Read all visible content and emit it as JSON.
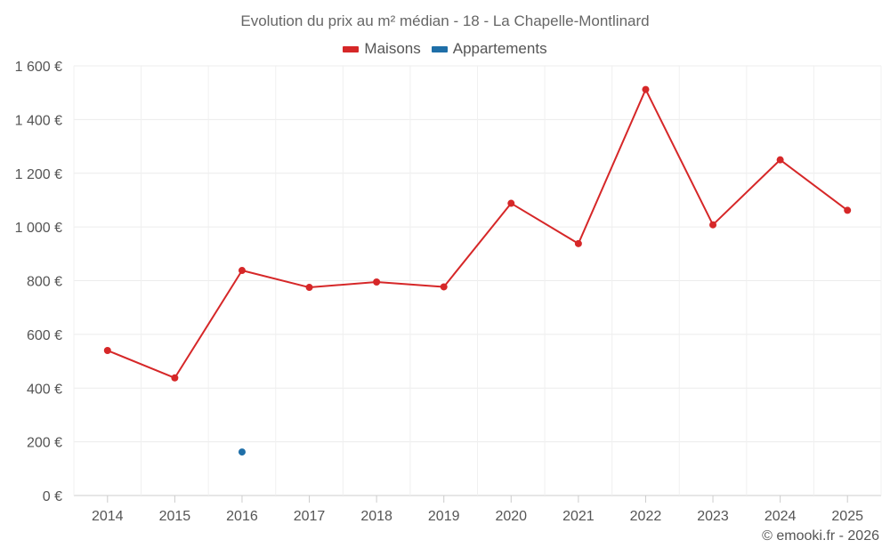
{
  "chart_data": {
    "type": "line",
    "title": "Evolution du prix au m² médian - 18 - La Chapelle-Montlinard",
    "categories": [
      "2014",
      "2015",
      "2016",
      "2017",
      "2018",
      "2019",
      "2020",
      "2021",
      "2022",
      "2023",
      "2024",
      "2025"
    ],
    "series": [
      {
        "name": "Maisons",
        "color": "#d62728",
        "values": [
          540,
          438,
          838,
          775,
          795,
          777,
          1088,
          938,
          1512,
          1008,
          1250,
          1062
        ]
      },
      {
        "name": "Appartements",
        "color": "#1f6fa8",
        "values": [
          null,
          null,
          162,
          null,
          null,
          null,
          null,
          null,
          null,
          null,
          null,
          null
        ]
      }
    ],
    "ylim": [
      0,
      1600
    ],
    "yticks": [
      0,
      200,
      400,
      600,
      800,
      1000,
      1200,
      1400,
      1600
    ],
    "ytick_labels": [
      "0 €",
      "200 €",
      "400 €",
      "600 €",
      "800 €",
      "1 000 €",
      "1 200 €",
      "1 400 €",
      "1 600 €"
    ],
    "xlabel": "",
    "ylabel": "",
    "legend_position": "top-center",
    "grid": true
  },
  "credit": "© emooki.fr - 2026"
}
